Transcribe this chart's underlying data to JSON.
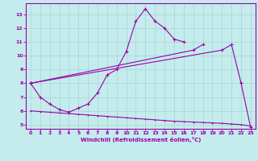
{
  "xlabel": "Windchill (Refroidissement éolien,°C)",
  "bg_color": "#c5ecec",
  "grid_color": "#a8d4d4",
  "line_color": "#9900aa",
  "xlim": [
    -0.5,
    23.5
  ],
  "ylim": [
    4.7,
    13.8
  ],
  "xticks": [
    0,
    1,
    2,
    3,
    4,
    5,
    6,
    7,
    8,
    9,
    10,
    11,
    12,
    13,
    14,
    15,
    16,
    17,
    18,
    19,
    20,
    21,
    22,
    23
  ],
  "yticks": [
    5,
    6,
    7,
    8,
    9,
    10,
    11,
    12,
    13
  ],
  "s1x": [
    0,
    1,
    2,
    3,
    4,
    5,
    6,
    7,
    8,
    9,
    10,
    11,
    12,
    13,
    14,
    15,
    16
  ],
  "s1y": [
    8.0,
    7.0,
    6.5,
    6.1,
    5.9,
    6.2,
    6.5,
    7.3,
    8.6,
    9.0,
    10.3,
    12.5,
    13.4,
    12.5,
    12.0,
    11.2,
    11.0
  ],
  "s2x": [
    0,
    20,
    21,
    22,
    23
  ],
  "s2y": [
    8.0,
    10.4,
    10.8,
    8.0,
    4.8
  ],
  "s3x": [
    0,
    17,
    18
  ],
  "s3y": [
    8.0,
    10.4,
    10.8
  ],
  "s4x": [
    0,
    1,
    2,
    3,
    4,
    5,
    6,
    7,
    8,
    9,
    10,
    11,
    12,
    13,
    14,
    15,
    16,
    17,
    18,
    19,
    20,
    21,
    22,
    23
  ],
  "s4y": [
    6.0,
    5.95,
    5.9,
    5.85,
    5.8,
    5.75,
    5.7,
    5.65,
    5.6,
    5.55,
    5.5,
    5.45,
    5.4,
    5.35,
    5.3,
    5.25,
    5.22,
    5.19,
    5.16,
    5.13,
    5.1,
    5.05,
    5.0,
    4.9
  ]
}
